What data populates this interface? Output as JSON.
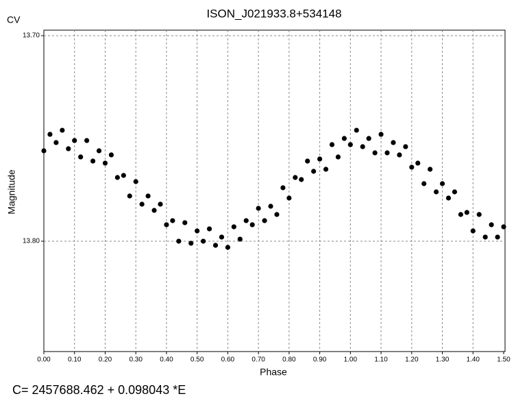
{
  "chart_data": {
    "type": "scatter",
    "title": "ISON_J021933.8+534148",
    "corner_label": "CV",
    "x_label": "Phase",
    "y_label": "Magnitude",
    "footer": "C= 2457688.462 + 0.098043 *E",
    "color": "#000000",
    "invert_y": true,
    "grid": true,
    "xlim": [
      0,
      1.5
    ],
    "ylim": [
      13.6973,
      13.8537
    ],
    "xticks": [
      {
        "value": 0,
        "label": "0.00"
      },
      {
        "value": 0.1,
        "label": "0.10"
      },
      {
        "value": 0.2,
        "label": "0.20"
      },
      {
        "value": 0.3,
        "label": "0.30"
      },
      {
        "value": 0.4,
        "label": "0.40"
      },
      {
        "value": 0.5,
        "label": "0.50"
      },
      {
        "value": 0.6,
        "label": "0.60"
      },
      {
        "value": 0.7,
        "label": "0.70"
      },
      {
        "value": 0.8,
        "label": "0.80"
      },
      {
        "value": 0.9,
        "label": "0.90"
      },
      {
        "value": 1.0,
        "label": "1.00"
      },
      {
        "value": 1.1,
        "label": "1.10"
      },
      {
        "value": 1.2,
        "label": "1.20"
      },
      {
        "value": 1.3,
        "label": "1.30"
      },
      {
        "value": 1.4,
        "label": "1.40"
      },
      {
        "value": 1.5,
        "label": "1.50"
      }
    ],
    "yticks": [
      {
        "value": 13.7,
        "label": "13.70"
      },
      {
        "value": 13.8,
        "label": "13.80"
      }
    ],
    "x": [
      0,
      0.02,
      0.04,
      0.06,
      0.08,
      0.1,
      0.12,
      0.14,
      0.16,
      0.18,
      0.2,
      0.22,
      0.24,
      0.26,
      0.28,
      0.3,
      0.32,
      0.34,
      0.36,
      0.38,
      0.4,
      0.42,
      0.44,
      0.46,
      0.48,
      0.5,
      0.52,
      0.54,
      0.56,
      0.58,
      0.6,
      0.62,
      0.64,
      0.66,
      0.68,
      0.7,
      0.72,
      0.74,
      0.76,
      0.78,
      0.8,
      0.82,
      0.84,
      0.86,
      0.88,
      0.9,
      0.92,
      0.94,
      0.96,
      0.98,
      1.0,
      1.02,
      1.04,
      1.06,
      1.08,
      1.1,
      1.12,
      1.14,
      1.16,
      1.18,
      1.2,
      1.22,
      1.24,
      1.26,
      1.28,
      1.3,
      1.32,
      1.34,
      1.36,
      1.38,
      1.4,
      1.42,
      1.44,
      1.46,
      1.48,
      1.5
    ],
    "values": [
      13.756,
      13.748,
      13.752,
      13.746,
      13.755,
      13.751,
      13.759,
      13.751,
      13.761,
      13.756,
      13.762,
      13.758,
      13.769,
      13.768,
      13.778,
      13.771,
      13.782,
      13.778,
      13.785,
      13.782,
      13.792,
      13.79,
      13.8,
      13.791,
      13.801,
      13.795,
      13.8,
      13.794,
      13.802,
      13.798,
      13.803,
      13.793,
      13.799,
      13.79,
      13.792,
      13.784,
      13.79,
      13.783,
      13.787,
      13.774,
      13.779,
      13.769,
      13.77,
      13.761,
      13.766,
      13.76,
      13.765,
      13.753,
      13.759,
      13.75,
      13.753,
      13.746,
      13.754,
      13.75,
      13.757,
      13.748,
      13.757,
      13.752,
      13.758,
      13.754,
      13.764,
      13.762,
      13.772,
      13.765,
      13.776,
      13.772,
      13.779,
      13.776,
      13.787,
      13.786,
      13.795,
      13.787,
      13.798,
      13.792,
      13.798,
      13.793
    ]
  }
}
